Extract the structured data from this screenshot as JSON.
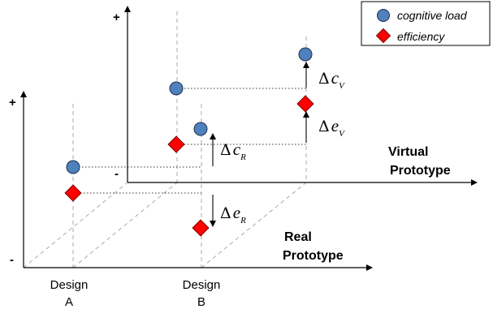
{
  "legend": {
    "items": [
      {
        "label": "cognitive load",
        "color": "#4f81bd",
        "shape": "circle"
      },
      {
        "label": "efficiency",
        "color": "#ff0000",
        "shape": "diamond"
      }
    ]
  },
  "axes": {
    "real": {
      "plus": "+",
      "minus": "-",
      "title_line1": "Real",
      "title_line2": "Prototype"
    },
    "virtual": {
      "plus": "+",
      "minus": "-",
      "title_line1": "Virtual",
      "title_line2": "Prototype"
    }
  },
  "designs": [
    {
      "line1": "Design",
      "line2": "A"
    },
    {
      "line1": "Design",
      "line2": "B"
    }
  ],
  "deltas": {
    "cV": {
      "symbol": "Δ",
      "var": "c",
      "sub": "V"
    },
    "eV": {
      "symbol": "Δ",
      "var": "e",
      "sub": "V"
    },
    "cR": {
      "symbol": "Δ",
      "var": "c",
      "sub": "R"
    },
    "eR": {
      "symbol": "Δ",
      "var": "e",
      "sub": "R"
    }
  },
  "colors": {
    "cognitive_load": "#4f81bd",
    "efficiency": "#ff0000",
    "marker_stroke": "#1f2f4f"
  }
}
